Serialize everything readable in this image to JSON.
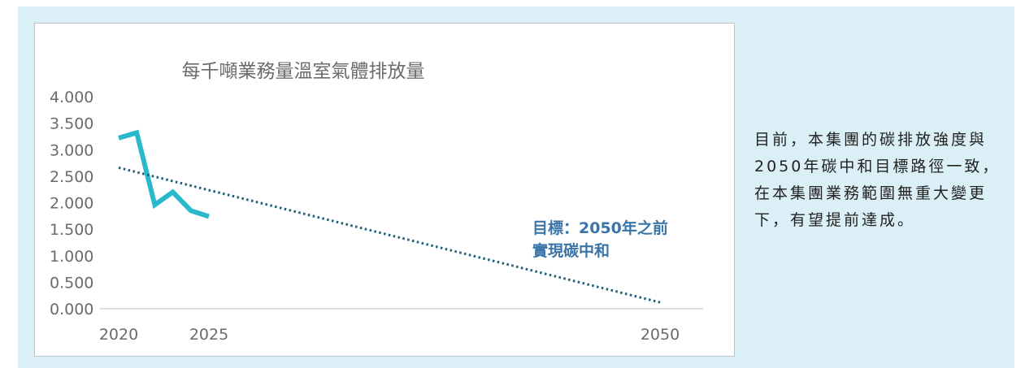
{
  "chart_data": {
    "type": "line",
    "title": "每千噸業務量溫室氣體排放量",
    "xlabel": "",
    "ylabel": "",
    "x_ticks": [
      "2020",
      "2025",
      "2050"
    ],
    "y_ticks": [
      "4.000",
      "3.500",
      "3.000",
      "2.500",
      "2.000",
      "1.500",
      "1.000",
      "0.500",
      "0.000"
    ],
    "xlim": [
      2020,
      2050
    ],
    "ylim": [
      0,
      4
    ],
    "series": [
      {
        "color": "#2ab9cc",
        "style": "solid",
        "x": [
          2020,
          2021,
          2022,
          2023,
          2024,
          2025
        ],
        "values": [
          3.22,
          3.32,
          1.96,
          2.2,
          1.85,
          1.74
        ]
      },
      {
        "color": "#1f5f78",
        "style": "dotted",
        "x": [
          2020,
          2050
        ],
        "values": [
          2.66,
          0.12
        ]
      }
    ],
    "annotation": {
      "lines": [
        "目標：2050年之前",
        "實現碳中和"
      ],
      "color": "#3a74a8"
    },
    "grid": false,
    "legend": "none"
  },
  "side_text": "目前，本集團的碳排放強度與2050年碳中和目標路徑一致，在本集團業務範圍無重大變更下，有望提前達成。"
}
